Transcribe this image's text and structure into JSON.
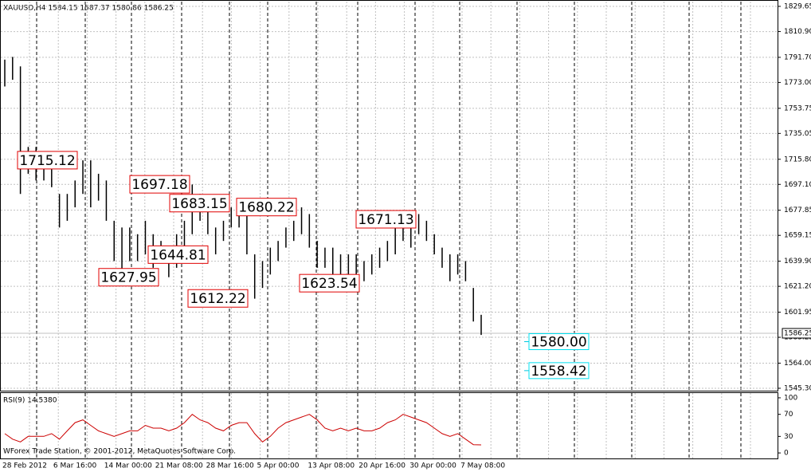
{
  "chart_data": {
    "type": "ohlc",
    "header": "XAUUSD,H4  1584.15 1587.37 1580.86 1586.25",
    "ylim": [
      1543.5,
      1833.2
    ],
    "yticks": [
      1829.65,
      {
        "value": 1810.9,
        "label": "1810.90"
      },
      {
        "value": 1791.7,
        "label": "1791.70"
      },
      {
        "value": 1773,
        "label": "1773.00"
      },
      1753.75,
      1735.05,
      {
        "value": 1715.8,
        "label": "1715.80"
      },
      {
        "value": 1697.1,
        "label": "1697.10"
      },
      1677.85,
      1659.15,
      {
        "value": 1639.9,
        "label": "1639.90"
      },
      {
        "value": 1621.2,
        "label": "1621.20"
      },
      1601.95,
      1583.25,
      {
        "value": 1564,
        "label": "1564.00"
      },
      {
        "value": 1545.3,
        "label": "1545.30"
      }
    ],
    "current_price": 1586.25,
    "high": [
      1790,
      1792,
      1785,
      1725,
      1725,
      1720,
      1715,
      1690,
      1690,
      1700,
      1715,
      1715,
      1705,
      1700,
      1670,
      1665,
      1665,
      1660,
      1670,
      1660,
      1655,
      1650,
      1660,
      1670,
      1697,
      1690,
      1685,
      1665,
      1670,
      1680,
      1685,
      1680,
      1645,
      1640,
      1650,
      1655,
      1665,
      1670,
      1680,
      1675,
      1655,
      1650,
      1650,
      1645,
      1645,
      1645,
      1640,
      1645,
      1650,
      1655,
      1665,
      1675,
      1675,
      1675,
      1670,
      1660,
      1650,
      1645,
      1645,
      1640,
      1620,
      1600
    ],
    "low": [
      1770,
      1775,
      1690,
      1705,
      1700,
      1700,
      1695,
      1665,
      1670,
      1680,
      1690,
      1680,
      1685,
      1670,
      1640,
      1632,
      1640,
      1640,
      1645,
      1635,
      1640,
      1628,
      1635,
      1650,
      1660,
      1670,
      1660,
      1645,
      1655,
      1665,
      1665,
      1645,
      1612,
      1620,
      1630,
      1640,
      1650,
      1655,
      1660,
      1650,
      1635,
      1635,
      1630,
      1630,
      1630,
      1630,
      1625,
      1630,
      1635,
      1640,
      1645,
      1655,
      1650,
      1660,
      1655,
      1645,
      1635,
      1625,
      1630,
      1625,
      1595,
      1585
    ],
    "bar_color": "#000000",
    "red_levels": [
      1715.12,
      1697.18,
      1683.15,
      1680.22,
      1671.13,
      1644.81,
      1627.95,
      1612.22,
      1623.54
    ],
    "cyan_levels": [
      {
        "value": 1580,
        "label": "1580.00"
      },
      1558.42
    ],
    "indicator": {
      "label": "RSI(9) 14.5380",
      "ylim": [
        -10,
        108.6
      ],
      "yticks": [
        100,
        70,
        30,
        0
      ],
      "color": "#cc0000",
      "values": [
        35,
        25,
        20,
        30,
        30,
        30,
        35,
        25,
        40,
        55,
        60,
        50,
        40,
        35,
        30,
        35,
        40,
        40,
        50,
        45,
        45,
        40,
        45,
        55,
        70,
        60,
        55,
        45,
        40,
        50,
        55,
        55,
        35,
        20,
        30,
        45,
        55,
        60,
        65,
        70,
        60,
        45,
        40,
        45,
        40,
        45,
        40,
        40,
        45,
        55,
        60,
        70,
        65,
        60,
        55,
        45,
        35,
        30,
        35,
        25,
        15,
        14.538
      ]
    },
    "xtick_labels": [
      "28 Feb 2012",
      "6 Mar 16:00",
      "14 Mar 00:00",
      "21 Mar 08:00",
      "28 Mar 16:00",
      "5 Apr 00:00",
      "13 Apr 08:00",
      "20 Apr 16:00",
      "30 Apr 00:00",
      "7 May 08:00"
    ],
    "footer": "WForex Trade Station, © 2001-2012, MetaQuotes Software Corp."
  }
}
